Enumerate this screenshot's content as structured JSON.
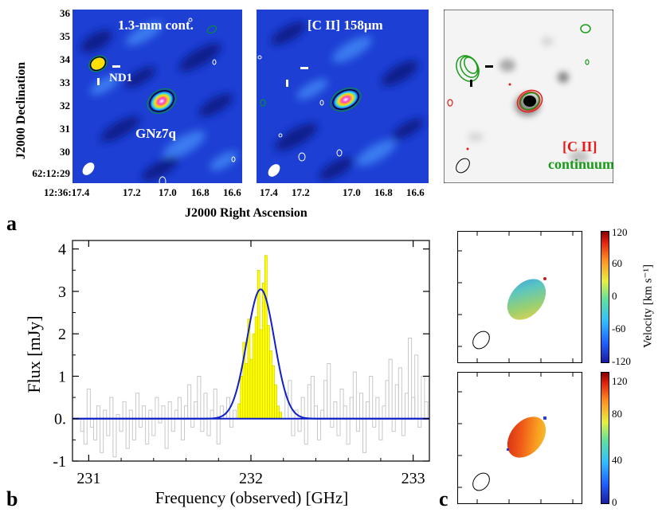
{
  "panel_labels": {
    "a": "a",
    "b": "b",
    "c": "c"
  },
  "panel_a": {
    "ylabel": "J2000 Declination",
    "xlabel": "J2000 Right Ascension",
    "dec_ticks": [
      "36",
      "35",
      "34",
      "33",
      "32",
      "31",
      "30",
      "62:12:29"
    ],
    "ra_ticks_first": [
      "12:36:17.4",
      "17.2",
      "17.0",
      "16.8",
      "16.6"
    ],
    "ra_ticks_other": [
      "17.4",
      "17.2",
      "17.0",
      "16.8",
      "16.6"
    ],
    "map1_title": "1.3-mm cont.",
    "map2_title": "[C II] 158μm",
    "label_nd1": "ND1",
    "label_gnz7q": "GNz7q",
    "legend_cii": "[C II]",
    "legend_continuum": "continuum",
    "colors": {
      "map_blue": "#1b3fd6",
      "cii": "#e31b1b",
      "continuum": "#1a9c1a",
      "yellow": "#ffff00",
      "fit": "#1020c8"
    }
  },
  "chart_data": {
    "type": "histogram",
    "xlabel": "Frequency (observed) [GHz]",
    "ylabel": "Flux [mJy]",
    "xlim": [
      230.9,
      233.1
    ],
    "ylim": [
      -1,
      4.2
    ],
    "x_ticks": [
      "231",
      "232",
      "233"
    ],
    "y_ticks": [
      "-1",
      "0.",
      "1",
      "2",
      "3",
      "4"
    ],
    "gaussian_fit": {
      "amplitude": 3.05,
      "center": 232.06,
      "sigma": 0.085
    },
    "line_channels": {
      "x_start": [
        231.92,
        231.935,
        231.95,
        231.965,
        231.98,
        231.995,
        232.01,
        232.025,
        232.04,
        232.055,
        232.07,
        232.085,
        232.1,
        232.115,
        232.13,
        232.145,
        232.16,
        232.175
      ],
      "values": [
        0.35,
        1.0,
        1.8,
        1.3,
        2.35,
        1.4,
        2.0,
        2.4,
        3.5,
        2.1,
        3.2,
        3.85,
        2.2,
        1.6,
        1.25,
        0.8,
        0.3,
        0.15
      ]
    },
    "noise_channels": {
      "x_start": [
        230.95,
        230.97,
        230.99,
        231.01,
        231.03,
        231.05,
        231.07,
        231.09,
        231.11,
        231.13,
        231.15,
        231.17,
        231.19,
        231.21,
        231.23,
        231.25,
        231.27,
        231.29,
        231.31,
        231.33,
        231.35,
        231.37,
        231.39,
        231.41,
        231.43,
        231.45,
        231.47,
        231.49,
        231.51,
        231.53,
        231.55,
        231.57,
        231.59,
        231.61,
        231.63,
        231.65,
        231.67,
        231.69,
        231.71,
        231.73,
        231.75,
        231.77,
        231.79,
        231.81,
        231.83,
        231.85,
        231.87,
        231.89,
        232.21,
        232.23,
        232.25,
        232.27,
        232.29,
        232.31,
        232.33,
        232.35,
        232.37,
        232.39,
        232.41,
        232.43,
        232.45,
        232.47,
        232.49,
        232.51,
        232.53,
        232.55,
        232.57,
        232.59,
        232.61,
        232.63,
        232.65,
        232.67,
        232.69,
        232.71,
        232.73,
        232.75,
        232.77,
        232.79,
        232.81,
        232.83,
        232.85,
        232.87,
        232.89,
        232.91,
        232.93,
        232.95,
        232.97,
        232.99,
        233.01,
        233.03,
        233.05,
        233.07
      ],
      "values": [
        -0.3,
        -0.6,
        0.7,
        -0.2,
        -0.5,
        0.3,
        -0.8,
        0.2,
        -0.4,
        0.5,
        -0.9,
        0.1,
        -0.3,
        0.4,
        -0.7,
        0.2,
        -0.5,
        0.6,
        -0.2,
        0.3,
        -0.6,
        0.2,
        -0.4,
        0.5,
        -0.1,
        0.3,
        -0.7,
        0.4,
        -0.3,
        0.2,
        0.5,
        -0.5,
        0.3,
        0.8,
        -0.2,
        0.4,
        1.0,
        -0.3,
        0.6,
        -0.4,
        0.2,
        0.7,
        -0.6,
        0.3,
        0.1,
        0.5,
        -0.2,
        0.2,
        0.6,
        0.9,
        -0.4,
        0.2,
        -0.3,
        0.5,
        -0.6,
        0.8,
        1.0,
        0.3,
        -0.5,
        0.2,
        0.9,
        1.3,
        -0.2,
        0.4,
        -0.4,
        0.7,
        0.3,
        -0.6,
        0.5,
        1.1,
        -0.3,
        0.6,
        -0.8,
        0.4,
        1.0,
        -0.2,
        0.5,
        -0.5,
        0.3,
        0.9,
        1.4,
        -0.3,
        0.8,
        1.2,
        -0.4,
        0.6,
        1.9,
        0.5,
        1.5,
        -0.2,
        1.0,
        0.4
      ]
    }
  },
  "panel_c": {
    "colorbar_label": "Velocity [km s⁻¹]",
    "top_ticks": [
      "120",
      "60",
      "0",
      "-60",
      "-120"
    ],
    "bottom_ticks": [
      "120",
      "80",
      "40",
      "0"
    ]
  }
}
